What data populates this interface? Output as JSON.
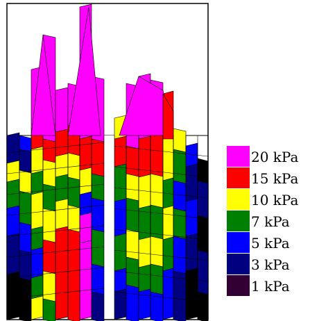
{
  "chart_data": {
    "type": "heatmap",
    "title": "",
    "xlabel": "",
    "ylabel": "",
    "unit": "kPa",
    "levels": [
      {
        "label": "20 kPa",
        "value": 20,
        "color": "#ff00ff"
      },
      {
        "label": "15 kPa",
        "value": 15,
        "color": "#ff0000"
      },
      {
        "label": "10 kPa",
        "value": 10,
        "color": "#ffff00"
      },
      {
        "label": "7 kPa",
        "value": 7,
        "color": "#008000"
      },
      {
        "label": "5 kPa",
        "value": 5,
        "color": "#0000ff"
      },
      {
        "label": "3 kPa",
        "value": 3,
        "color": "#000080"
      },
      {
        "label": "1 kPa",
        "value": 1,
        "color": "#330033"
      }
    ],
    "legend_position": "right",
    "grid": true
  }
}
